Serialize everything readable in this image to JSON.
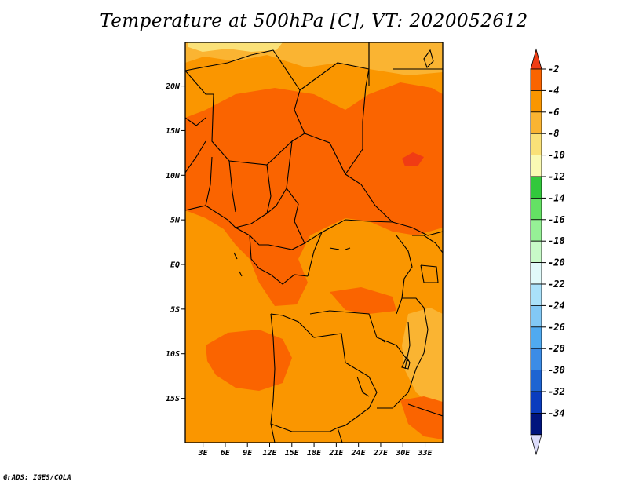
{
  "title": "Temperature at 500hPa [C], VT: 2020052612",
  "footer": "GrADS: IGES/COLA",
  "map": {
    "lat_ticks": [
      {
        "value": 20,
        "label": "20N"
      },
      {
        "value": 15,
        "label": "15N"
      },
      {
        "value": 10,
        "label": "10N"
      },
      {
        "value": 5,
        "label": "5N"
      },
      {
        "value": 0,
        "label": "EQ"
      },
      {
        "value": -5,
        "label": "5S"
      },
      {
        "value": -10,
        "label": "10S"
      },
      {
        "value": -15,
        "label": "15S"
      }
    ],
    "lon_ticks": [
      {
        "value": 3,
        "label": "3E"
      },
      {
        "value": 6,
        "label": "6E"
      },
      {
        "value": 9,
        "label": "9E"
      },
      {
        "value": 12,
        "label": "12E"
      },
      {
        "value": 15,
        "label": "15E"
      },
      {
        "value": 18,
        "label": "18E"
      },
      {
        "value": 21,
        "label": "21E"
      },
      {
        "value": 24,
        "label": "24E"
      },
      {
        "value": 27,
        "label": "27E"
      },
      {
        "value": 30,
        "label": "30E"
      },
      {
        "value": 33,
        "label": "33E"
      }
    ]
  },
  "colorbar": {
    "labels": [
      "-2",
      "-4",
      "-6",
      "-8",
      "-10",
      "-12",
      "-14",
      "-16",
      "-18",
      "-20",
      "-22",
      "-24",
      "-26",
      "-28",
      "-30",
      "-32",
      "-34"
    ],
    "colors": [
      "#f03c14",
      "#fa6400",
      "#fa9600",
      "#fab432",
      "#fae178",
      "#fafab4",
      "#32c83c",
      "#64e164",
      "#96f096",
      "#c8fac8",
      "#e1fafa",
      "#aae1fa",
      "#82c8f5",
      "#50aaf0",
      "#3c8ce6",
      "#1e64d2",
      "#0a3cbe",
      "#00147d",
      "#dcdcfa"
    ]
  }
}
